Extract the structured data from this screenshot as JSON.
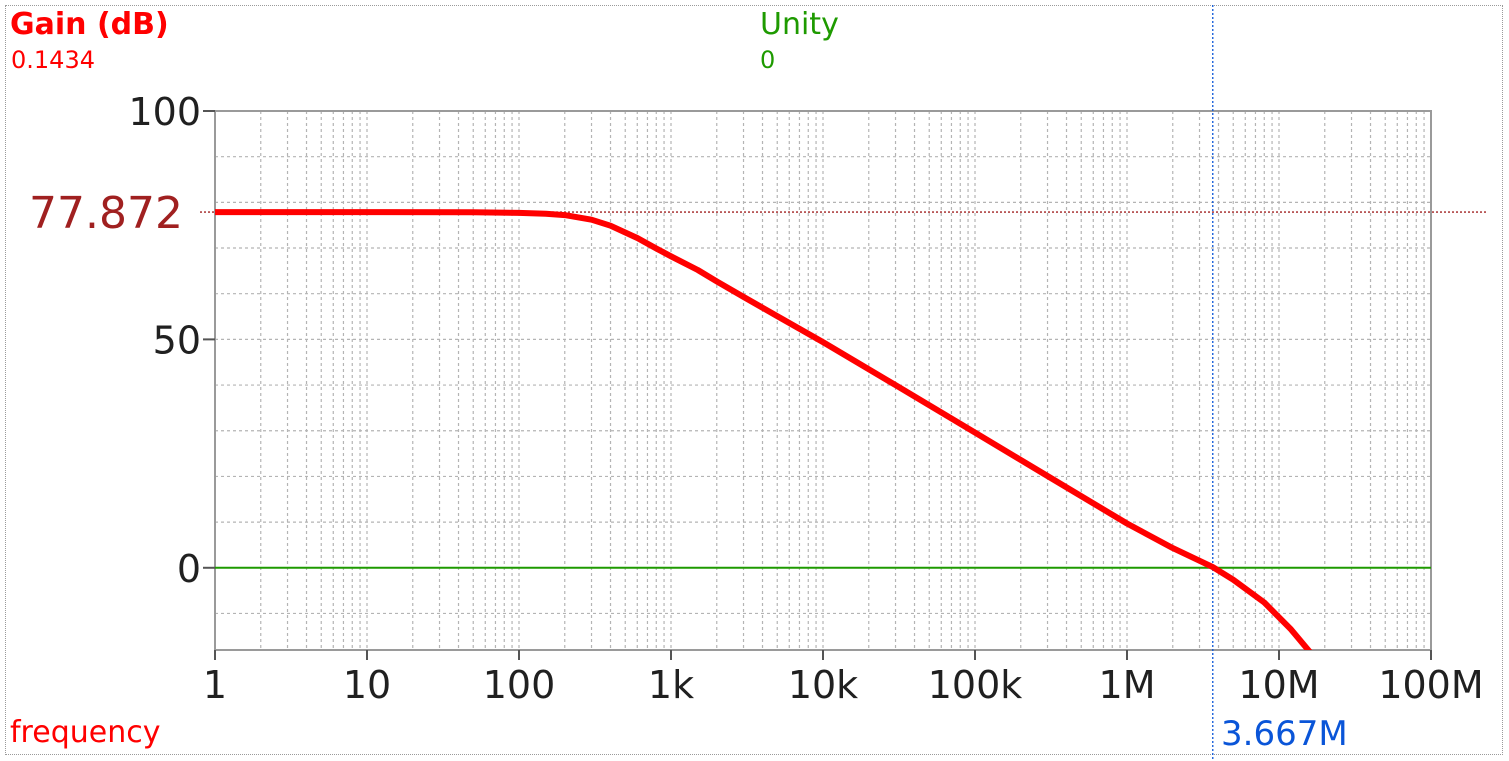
{
  "header": {
    "trace_name": "Gain (dB)",
    "trace_value": "0.1434",
    "reference_name": "Unity",
    "reference_value": "0"
  },
  "footer": {
    "x_label": "frequency",
    "cursor_x_label": "3.667M"
  },
  "colors": {
    "trace": "#ff0000",
    "reference": "#1e9a00",
    "cursor_x": "#0a55d8",
    "cursor_y": "#a02020",
    "grid": "#b4b4b4"
  },
  "chart_data": {
    "type": "line",
    "xscale": "log",
    "xlim": [
      1,
      100000000
    ],
    "ylim": [
      -18,
      100
    ],
    "x_ticks": [
      1,
      10,
      100,
      1000,
      10000,
      100000,
      1000000,
      10000000,
      100000000
    ],
    "x_tick_labels": [
      "1",
      "10",
      "100",
      "1k",
      "10k",
      "100k",
      "1M",
      "10M",
      "100M"
    ],
    "y_ticks": [
      0,
      50,
      100
    ],
    "y_tick_labels": [
      "0",
      "50",
      "100"
    ],
    "grid": true,
    "series": [
      {
        "color": "#ff0000",
        "x": [
          1,
          10,
          50,
          100,
          150,
          200,
          300,
          400,
          600,
          800,
          1000,
          1500,
          2000,
          3000,
          5000,
          10000,
          30000,
          100000,
          300000,
          1000000,
          2000000,
          3667000,
          5000000,
          8000000,
          12000000,
          17000000,
          21000000
        ],
        "y": [
          77.87,
          77.87,
          77.82,
          77.7,
          77.5,
          77.2,
          76.2,
          74.9,
          72.2,
          69.9,
          68.2,
          65.2,
          62.7,
          59.3,
          55.1,
          49.4,
          40,
          29.6,
          20.1,
          9.7,
          4.3,
          0.14,
          -2.6,
          -7.6,
          -13.5,
          -19.5,
          -22.5
        ]
      }
    ],
    "reference_line": {
      "y": 0,
      "color": "#1e9a00"
    },
    "cursor": {
      "x": 3667000,
      "y": 77.872,
      "x_label": "3.667M",
      "y_label": "77.872"
    }
  }
}
